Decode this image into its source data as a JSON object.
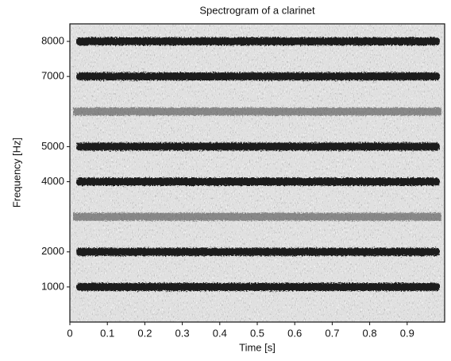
{
  "chart_data": {
    "type": "spectrogram",
    "title": "Spectrogram of a clarinet",
    "x_label": "Time [s]",
    "y_label": "Frequency [Hz]",
    "xlim": [
      0,
      1
    ],
    "ylim": [
      0,
      8500
    ],
    "xticks": [
      0,
      0.1,
      0.2,
      0.3,
      0.4,
      0.5,
      0.6,
      0.7,
      0.8,
      0.9
    ],
    "yticks": [
      1000,
      2000,
      4000,
      5000,
      7000,
      8000
    ],
    "bands": [
      1000,
      2000,
      4000,
      5000,
      7000,
      8000
    ],
    "weak_bands": [
      3000,
      6000
    ],
    "color": "#1a1a1a"
  }
}
